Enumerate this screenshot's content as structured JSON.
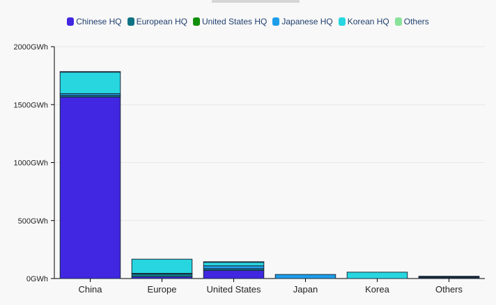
{
  "chart_data": {
    "type": "bar",
    "stacked": true,
    "categories": [
      "China",
      "Europe",
      "United States",
      "Japan",
      "Korea",
      "Others"
    ],
    "series": [
      {
        "name": "Chinese HQ",
        "color": "#4127e2",
        "values": [
          1565,
          15,
          70,
          0,
          0,
          5
        ]
      },
      {
        "name": "European HQ",
        "color": "#0f7385",
        "values": [
          15,
          25,
          15,
          0,
          0,
          5
        ]
      },
      {
        "name": "United States HQ",
        "color": "#118f0c",
        "values": [
          0,
          0,
          0,
          0,
          0,
          0
        ]
      },
      {
        "name": "Japanese HQ",
        "color": "#1e9ee9",
        "values": [
          15,
          5,
          25,
          35,
          0,
          5
        ]
      },
      {
        "name": "Korean HQ",
        "color": "#28d6e0",
        "values": [
          185,
          122,
          30,
          0,
          55,
          5
        ]
      },
      {
        "name": "Others",
        "color": "#8ae29a",
        "values": [
          5,
          0,
          5,
          0,
          0,
          0
        ]
      }
    ],
    "ylim": [
      0,
      2000
    ],
    "yticks": [
      "0GWh",
      "500GWh",
      "1000GWh",
      "1500GWh",
      "2000GWh"
    ],
    "ytick_values": [
      0,
      500,
      1000,
      1500,
      2000
    ],
    "grid": true,
    "legend": "top"
  }
}
